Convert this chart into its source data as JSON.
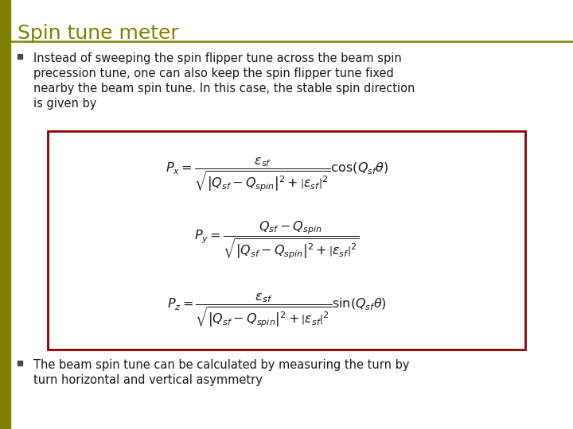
{
  "title": "Spin tune meter",
  "title_color": "#808000",
  "title_underline_color": "#808000",
  "left_bar_color": "#808000",
  "bullet1_lines": [
    "Instead of sweeping the spin flipper tune across the beam spin",
    "precession tune, one can also keep the spin flipper tune fixed",
    "nearby the beam spin tune. In this case, the stable spin direction",
    "is given by"
  ],
  "bullet2_lines": [
    "The beam spin tune can be calculated by measuring the turn by",
    "turn horizontal and vertical asymmetry"
  ],
  "formula_box_border": "#8B0000",
  "formula_box_bg": "#ffffff",
  "eq1": "$P_x = \\dfrac{\\varepsilon_{sf}}{\\sqrt{\\left|Q_{sf} - Q_{spin}\\right|^2 + \\left|\\varepsilon_{sf}\\right|^2}}\\cos(Q_{sf}\\theta)$",
  "eq2": "$P_y = \\dfrac{Q_{sf} - Q_{spin}}{\\sqrt{\\left|Q_{sf} - Q_{spin}\\right|^2 + \\left|\\varepsilon_{sf}\\right|^2}}$",
  "eq3": "$P_z = \\dfrac{\\varepsilon_{sf}}{\\sqrt{\\left|Q_{sf} - Q_{spin}\\right|^2 + \\left|\\varepsilon_{sf}\\right|^2}}\\sin(Q_{sf}\\theta)$",
  "bg_color": "#ffffff",
  "text_color": "#1a1a1a",
  "font_size_title": 18,
  "font_size_body": 10.5,
  "font_size_formula": 11.5
}
